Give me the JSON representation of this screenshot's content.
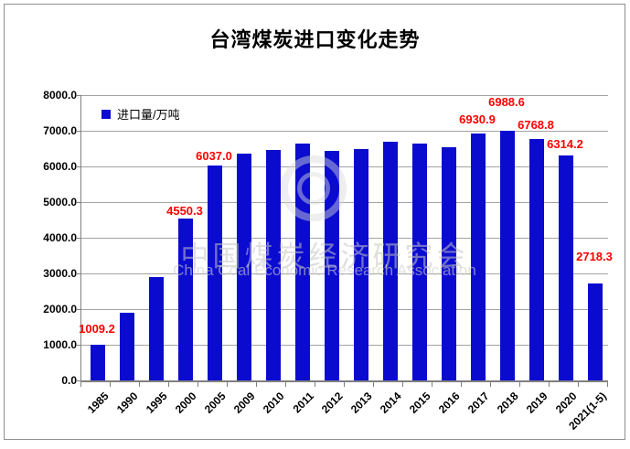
{
  "chart_data": {
    "type": "bar",
    "title": "台湾煤炭进口变化走势",
    "series_name": "进口量/万吨",
    "legend_position": "top-left-inside",
    "grid": true,
    "ylim": [
      0,
      8000
    ],
    "ytick_step": 1000,
    "ytick_labels": [
      "8000.0",
      "7000.0",
      "6000.0",
      "5000.0",
      "4000.0",
      "3000.0",
      "2000.0",
      "1000.0",
      "0.0"
    ],
    "bar_color": "#0b0bd0",
    "data_label_color": "#ff0000",
    "categories": [
      "1985",
      "1990",
      "1995",
      "2000",
      "2005",
      "2009",
      "2010",
      "2011",
      "2012",
      "2013",
      "2014",
      "2015",
      "2016",
      "2017",
      "2018",
      "2019",
      "2020",
      "2021(1-5)"
    ],
    "values": [
      1009.2,
      1890,
      2910,
      4550.3,
      6037.0,
      6350,
      6465,
      6640,
      6440,
      6495,
      6690,
      6630,
      6545,
      6930.9,
      6988.6,
      6768.8,
      6314.2,
      2718.3
    ],
    "data_labels": [
      "1009.2",
      null,
      null,
      "4550.3",
      "6037.0",
      null,
      null,
      null,
      null,
      null,
      null,
      null,
      null,
      "6930.9",
      "6988.6",
      "6768.8",
      "6314.2",
      "2718.3"
    ],
    "label_gaps": [
      10,
      0,
      0,
      1,
      3,
      0,
      0,
      0,
      0,
      0,
      0,
      0,
      0,
      8,
      24,
      8,
      5,
      22
    ]
  },
  "watermark": {
    "line1": "中国煤炭经济研究会",
    "line2": "China Coal Economic Research Association"
  }
}
